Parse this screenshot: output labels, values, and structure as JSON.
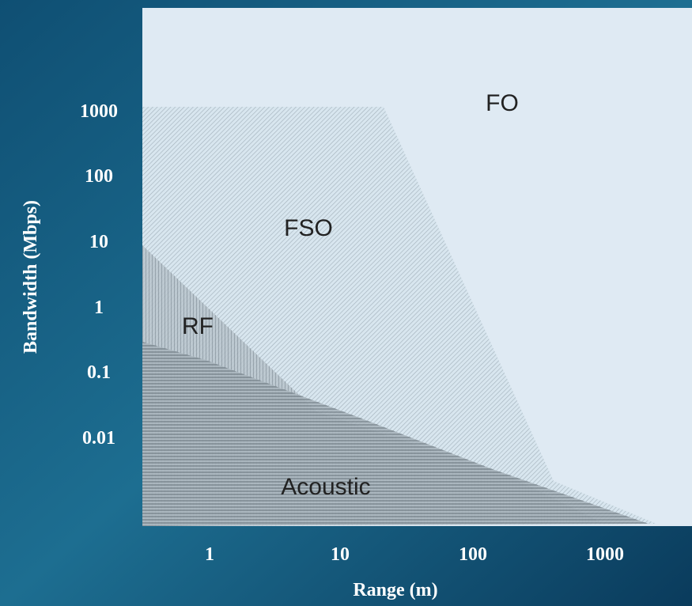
{
  "x_axis": {
    "label": "Range (m)",
    "ticks": [
      "1",
      "10",
      "100",
      "1000"
    ]
  },
  "y_axis": {
    "label": "Bandwidth (Mbps)",
    "ticks": [
      "1000",
      "100",
      "10",
      "1",
      "0.1",
      "0.01"
    ]
  },
  "regions": [
    {
      "label": "FO"
    },
    {
      "label": "FSO"
    },
    {
      "label": "RF"
    },
    {
      "label": "Acoustic"
    }
  ]
}
